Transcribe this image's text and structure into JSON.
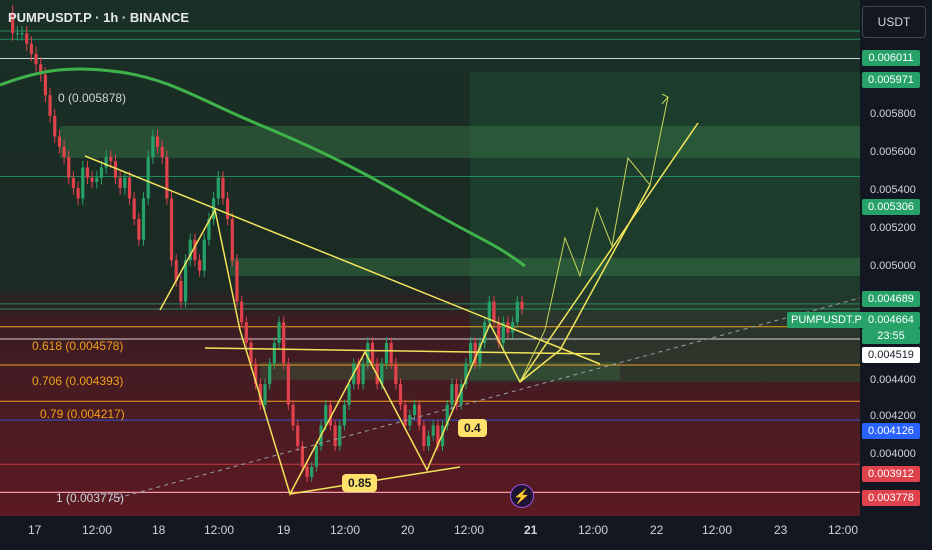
{
  "header": {
    "title": "PUMPUSDT.P · 1h · BINANCE"
  },
  "currency_button": "USDT",
  "symbol_label": "PUMPUSDT.P",
  "countdown": "23:55",
  "colors": {
    "bg": "#131722",
    "up": "#26a269",
    "down": "#e0424b",
    "fib": "#f0a01e",
    "pattern": "#f2e45a",
    "ma": "#3fb34a"
  },
  "icons": {
    "alert": "lightning-icon"
  },
  "chart_data": {
    "type": "candlestick",
    "ylim": [
      0.0037,
      0.0062
    ],
    "y_ticks": [
      "0.005800",
      "0.005600",
      "0.005400",
      "0.005200",
      "0.005000",
      "0.004400",
      "0.004200",
      "0.004000"
    ],
    "x_ticks": [
      "17",
      "12:00",
      "18",
      "12:00",
      "19",
      "12:00",
      "20",
      "12:00",
      "21",
      "12:00",
      "22",
      "12:00",
      "23",
      "12:00"
    ],
    "price_badges": [
      {
        "label": "0.006011",
        "color": "#26a269"
      },
      {
        "label": "0.005971",
        "color": "#26a269"
      },
      {
        "label": "0.005306",
        "color": "#26a269"
      },
      {
        "label": "0.004689",
        "color": "#26a269"
      },
      {
        "label": "0.004664",
        "color": "#26a269"
      },
      {
        "label": "0.004519",
        "color": "#ffffff"
      },
      {
        "label": "0.004126",
        "color": "#2962ff"
      },
      {
        "label": "0.003912",
        "color": "#e0424b"
      },
      {
        "label": "0.003778",
        "color": "#e0424b"
      }
    ],
    "fib_levels": [
      {
        "label": "0 (0.005878)",
        "value": 0.005878
      },
      {
        "label": "0.618 (0.004578)",
        "value": 0.004578
      },
      {
        "label": "0.706 (0.004393)",
        "value": 0.004393
      },
      {
        "label": "0.79 (0.004217)",
        "value": 0.004217
      },
      {
        "label": "1 (0.003775)",
        "value": 0.003775
      }
    ],
    "pattern_labels": [
      "0.85",
      "0.4"
    ],
    "close_series": [
      0.0061,
      0.006,
      0.006,
      0.006,
      0.00595,
      0.0059,
      0.00585,
      0.0058,
      0.0057,
      0.0056,
      0.0055,
      0.00545,
      0.0054,
      0.0053,
      0.00525,
      0.0052,
      0.00535,
      0.0053,
      0.00528,
      0.0053,
      0.00535,
      0.0054,
      0.00538,
      0.0053,
      0.00525,
      0.0053,
      0.0052,
      0.0051,
      0.005,
      0.0052,
      0.0054,
      0.0055,
      0.00545,
      0.0054,
      0.0052,
      0.0049,
      0.0048,
      0.0047,
      0.0049,
      0.005,
      0.0049,
      0.00485,
      0.005,
      0.0051,
      0.0052,
      0.0053,
      0.0052,
      0.0051,
      0.0049,
      0.0047,
      0.0046,
      0.0045,
      0.0044,
      0.0043,
      0.0042,
      0.0043,
      0.0044,
      0.0045,
      0.0046,
      0.0044,
      0.0042,
      0.0041,
      0.004,
      0.0039,
      0.00385,
      0.0039,
      0.004,
      0.0041,
      0.0042,
      0.0041,
      0.004,
      0.0041,
      0.0042,
      0.0043,
      0.0044,
      0.0043,
      0.0044,
      0.0045,
      0.0044,
      0.0043,
      0.0044,
      0.0045,
      0.0044,
      0.0043,
      0.0042,
      0.0041,
      0.00415,
      0.0042,
      0.0041,
      0.004,
      0.00405,
      0.0041,
      0.004,
      0.0041,
      0.0042,
      0.0043,
      0.0042,
      0.0043,
      0.0044,
      0.0045,
      0.0044,
      0.0045,
      0.0046,
      0.0047,
      0.0046,
      0.0045,
      0.0046,
      0.00455,
      0.0046,
      0.0047,
      0.004664
    ]
  }
}
